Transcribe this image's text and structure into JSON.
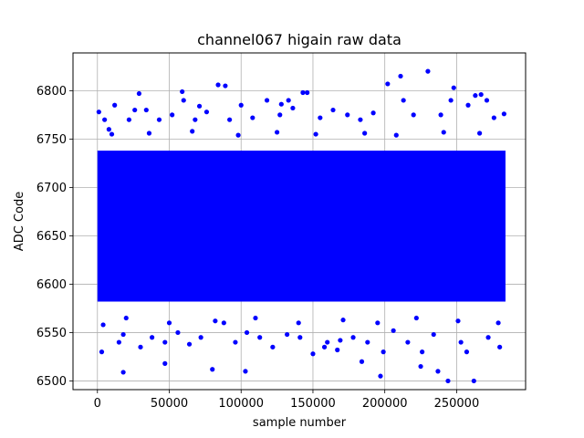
{
  "chart_data": {
    "type": "scatter",
    "title": "channel067 higain raw data",
    "xlabel": "sample number",
    "ylabel": "ADC Code",
    "xlim": [
      -17000,
      298000
    ],
    "ylim": [
      6491,
      6839
    ],
    "xticks": [
      0,
      50000,
      100000,
      150000,
      200000,
      250000
    ],
    "yticks": [
      6500,
      6550,
      6600,
      6650,
      6700,
      6750,
      6800
    ],
    "grid": true,
    "marker_color": "#0000ff",
    "dense_band": {
      "x_range": [
        0,
        284000
      ],
      "y_range": [
        6582,
        6738
      ]
    },
    "series": [
      {
        "x": [
          1000,
          3000,
          5000,
          8000,
          12000,
          15000,
          18000,
          22000,
          26000,
          30000,
          34000,
          38000,
          43000,
          47000,
          52000,
          56000,
          60000,
          64000,
          68000,
          72000,
          76000,
          80000,
          84000,
          88000,
          92000,
          96000,
          100000,
          104000,
          108000,
          113000,
          118000,
          122000,
          127000,
          132000,
          136000,
          141000,
          146000,
          150000,
          155000,
          160000,
          164000,
          169000,
          174000,
          178000,
          183000,
          188000,
          192000,
          197000,
          202000,
          206000,
          211000,
          216000,
          220000,
          225000,
          230000,
          234000,
          239000,
          244000,
          248000,
          253000,
          258000,
          262000,
          267000,
          272000,
          276000,
          280000,
          283000
        ],
        "y": [
          6778,
          6530,
          6770,
          6760,
          6785,
          6540,
          6548,
          6770,
          6780,
          6535,
          6780,
          6545,
          6770,
          6540,
          6775,
          6550,
          6790,
          6538,
          6770,
          6545,
          6778,
          6512,
          6806,
          6560,
          6770,
          6540,
          6785,
          6550,
          6772,
          6545,
          6790,
          6535,
          6775,
          6548,
          6782,
          6545,
          6798,
          6528,
          6772,
          6540,
          6780,
          6542,
          6775,
          6545,
          6770,
          6540,
          6777,
          6505,
          6807,
          6552,
          6815,
          6540,
          6775,
          6515,
          6820,
          6548,
          6775,
          6500,
          6803,
          6540,
          6785,
          6500,
          6796,
          6545,
          6772,
          6535,
          6776
        ]
      },
      {
        "x": [
          18000,
          29000,
          47000,
          59000,
          71000,
          89000,
          103000,
          128000,
          133000,
          143000,
          158000,
          167000,
          184000,
          199000,
          213000,
          226000,
          237000,
          246000,
          257000,
          263000,
          271000
        ],
        "y": [
          6509,
          6797,
          6518,
          6799,
          6784,
          6805,
          6510,
          6786,
          6790,
          6798,
          6535,
          6532,
          6520,
          6530,
          6790,
          6530,
          6510,
          6790,
          6530,
          6795,
          6790
        ]
      },
      {
        "x": [
          4000,
          10000,
          20000,
          36000,
          50000,
          66000,
          82000,
          98000,
          110000,
          125000,
          140000,
          152000,
          171000,
          186000,
          195000,
          208000,
          222000,
          241000,
          251000,
          266000,
          279000
        ],
        "y": [
          6558,
          6755,
          6565,
          6756,
          6560,
          6758,
          6562,
          6754,
          6565,
          6757,
          6560,
          6755,
          6563,
          6756,
          6560,
          6754,
          6565,
          6757,
          6562,
          6756,
          6560
        ]
      }
    ]
  }
}
